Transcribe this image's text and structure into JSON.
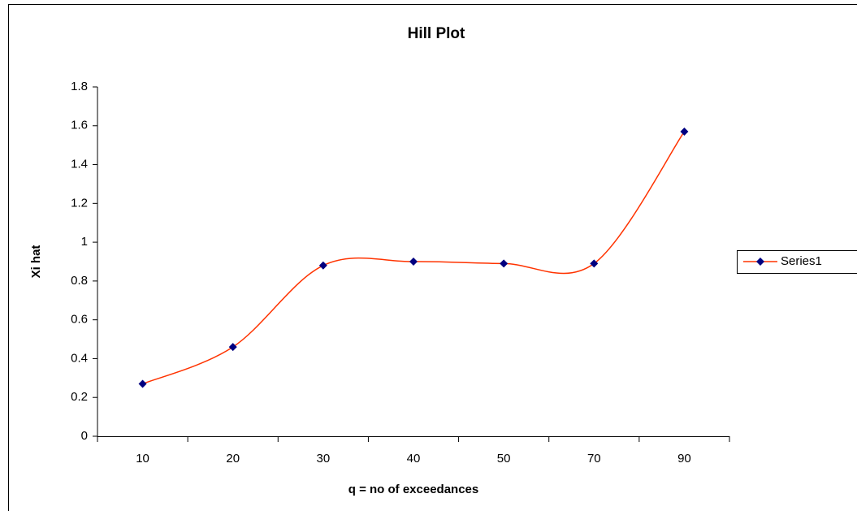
{
  "chart_data": {
    "type": "line",
    "title": "Hill Plot",
    "x_label": "q = no of exceedances",
    "y_label": "Xi hat",
    "categories": [
      "10",
      "20",
      "30",
      "40",
      "50",
      "70",
      "90"
    ],
    "series": [
      {
        "name": "Series1",
        "color": "#ff3300",
        "marker_color": "#000080",
        "values": [
          0.27,
          0.46,
          0.88,
          0.9,
          0.89,
          0.89,
          1.57
        ]
      }
    ],
    "ylim": [
      0,
      1.8
    ],
    "yticks": [
      0,
      0.2,
      0.4,
      0.6,
      0.8,
      1,
      1.2,
      1.4,
      1.6,
      1.8
    ],
    "smooth": true,
    "legend": "right"
  }
}
